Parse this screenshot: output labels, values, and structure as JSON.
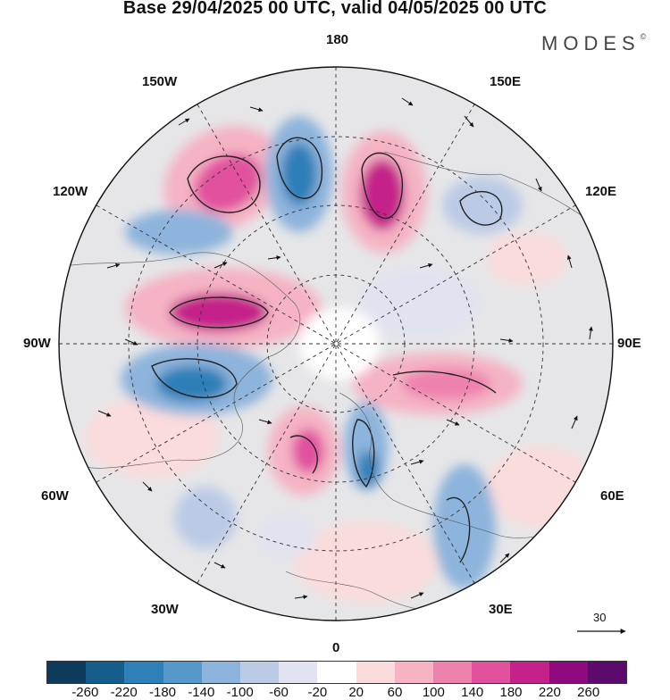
{
  "title": "Base 29/04/2025 00 UTC, valid 04/05/2025 00 UTC",
  "brand": "MODES",
  "brand_mark": "©",
  "longitude_labels": {
    "top": "180",
    "bottom": "0",
    "left": "90W",
    "right": "90E",
    "upper_left_1": "150W",
    "upper_left_2": "120W",
    "upper_right_1": "150E",
    "upper_right_2": "120E",
    "lower_left_1": "60W",
    "lower_left_2": "30W",
    "lower_right_1": "60E",
    "lower_right_2": "30E"
  },
  "vector_scale_label": "30",
  "colorbar": {
    "colors": [
      "#0e3a5c",
      "#155e8c",
      "#2f7fb8",
      "#5598c9",
      "#8db4dc",
      "#bccbe5",
      "#e2e3f0",
      "#ffffff",
      "#fbdcdc",
      "#f5b3c4",
      "#ee82ae",
      "#e1519e",
      "#c4218a",
      "#8f0a7e",
      "#5d0a6d"
    ],
    "ticks": [
      "-260",
      "-220",
      "-180",
      "-140",
      "-100",
      "-60",
      "-20",
      "20",
      "60",
      "100",
      "140",
      "180",
      "220",
      "260"
    ]
  }
}
